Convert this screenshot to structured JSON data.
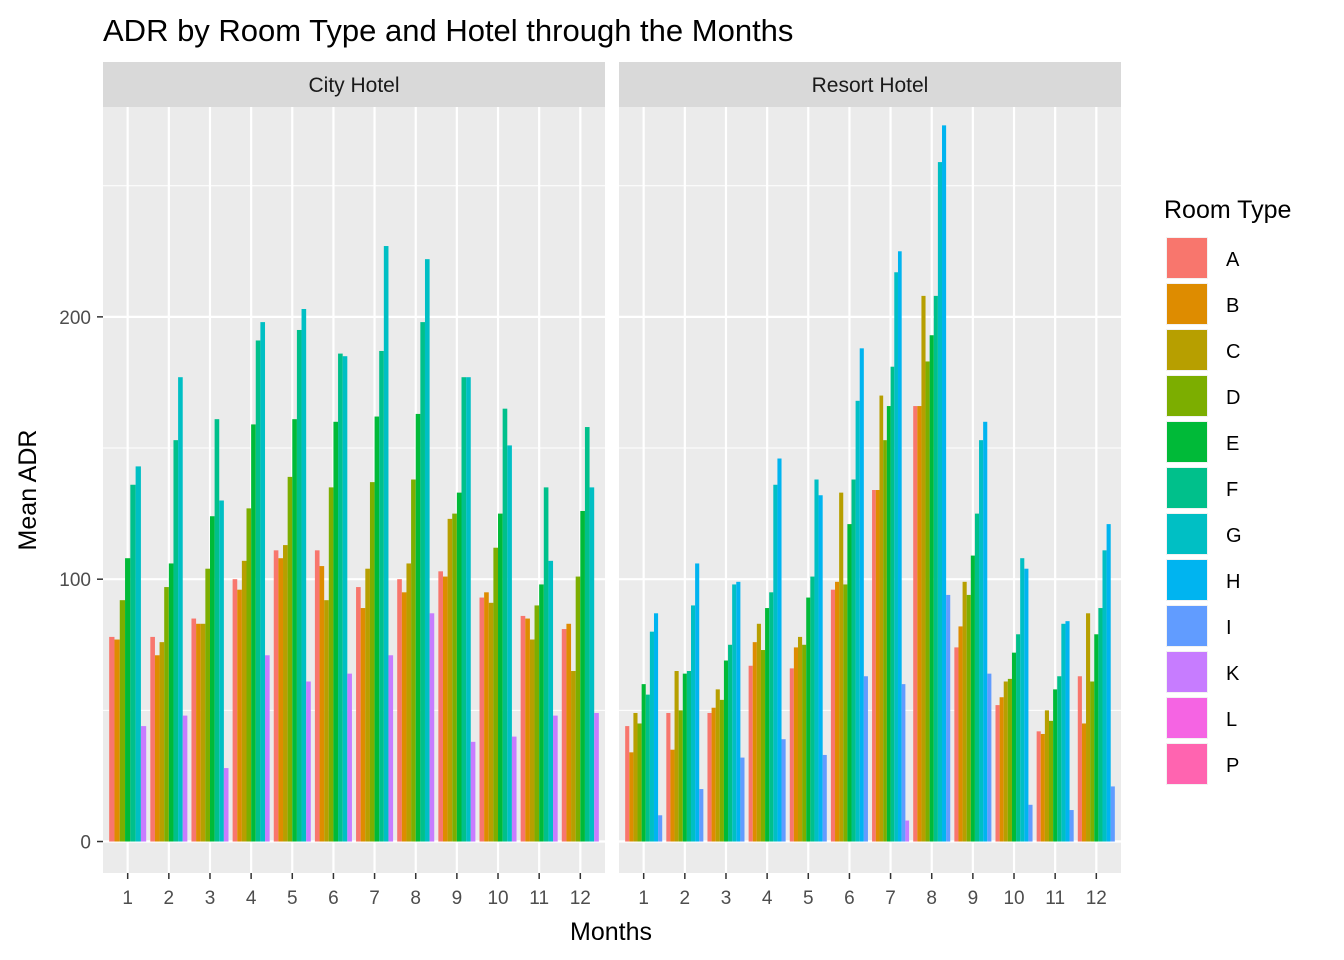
{
  "chart_data": {
    "type": "bar",
    "title": "ADR by Room Type and Hotel through the Months",
    "xlabel": "Months",
    "ylabel": "Mean ADR",
    "ylim": [
      -12,
      280
    ],
    "yticks": [
      0,
      100,
      200
    ],
    "grid": true,
    "legend": {
      "title": "Room Type",
      "placement": "right",
      "entries": [
        "A",
        "B",
        "C",
        "D",
        "E",
        "F",
        "G",
        "H",
        "I",
        "K",
        "L",
        "P"
      ]
    },
    "colors": {
      "A": "#F8766D",
      "B": "#DE8C00",
      "C": "#B79F00",
      "D": "#7CAE00",
      "E": "#00BA38",
      "F": "#00C08B",
      "G": "#00BFC4",
      "H": "#00B4F0",
      "I": "#619CFF",
      "K": "#C77CFF",
      "L": "#F564E3",
      "P": "#FF64B0"
    },
    "categories": [
      "1",
      "2",
      "3",
      "4",
      "5",
      "6",
      "7",
      "8",
      "9",
      "10",
      "11",
      "12"
    ],
    "panels": [
      {
        "name": "City Hotel",
        "groups": [
          {
            "A": 78,
            "B": 77,
            "D": 92,
            "E": 108,
            "F": 136,
            "G": 143,
            "K": 44
          },
          {
            "A": 78,
            "B": 71,
            "C": 76,
            "D": 97,
            "E": 106,
            "F": 153,
            "G": 177,
            "K": 48
          },
          {
            "A": 85,
            "B": 83,
            "C": 83,
            "D": 104,
            "E": 124,
            "F": 161,
            "G": 130,
            "K": 28
          },
          {
            "A": 100,
            "B": 96,
            "C": 107,
            "D": 127,
            "E": 159,
            "F": 191,
            "G": 198,
            "K": 71
          },
          {
            "A": 111,
            "B": 108,
            "C": 113,
            "D": 139,
            "E": 161,
            "F": 195,
            "G": 203,
            "K": 61
          },
          {
            "A": 111,
            "B": 105,
            "C": 92,
            "D": 135,
            "E": 160,
            "F": 186,
            "G": 185,
            "K": 64
          },
          {
            "A": 97,
            "B": 89,
            "C": 104,
            "D": 137,
            "E": 162,
            "F": 187,
            "G": 227,
            "K": 71
          },
          {
            "A": 100,
            "B": 95,
            "C": 106,
            "D": 138,
            "E": 163,
            "F": 198,
            "G": 222,
            "K": 87
          },
          {
            "A": 103,
            "B": 101,
            "C": 123,
            "D": 125,
            "E": 133,
            "F": 177,
            "G": 177,
            "K": 38
          },
          {
            "A": 93,
            "B": 95,
            "C": 91,
            "D": 112,
            "E": 125,
            "F": 165,
            "G": 151,
            "K": 40
          },
          {
            "A": 86,
            "B": 85,
            "C": 77,
            "D": 90,
            "E": 98,
            "F": 135,
            "G": 107,
            "K": 48
          },
          {
            "A": 81,
            "B": 83,
            "C": 65,
            "D": 101,
            "E": 126,
            "F": 158,
            "G": 135,
            "K": 49
          }
        ]
      },
      {
        "name": "Resort Hotel",
        "groups": [
          {
            "A": 44,
            "B": 34,
            "C": 49,
            "D": 45,
            "E": 60,
            "F": 56,
            "G": 80,
            "H": 87,
            "I": 10
          },
          {
            "A": 49,
            "B": 35,
            "C": 65,
            "D": 50,
            "E": 64,
            "F": 65,
            "G": 90,
            "H": 106,
            "I": 20
          },
          {
            "A": 49,
            "B": 51,
            "C": 58,
            "D": 54,
            "E": 69,
            "F": 75,
            "G": 98,
            "H": 99,
            "I": 32
          },
          {
            "A": 67,
            "B": 76,
            "C": 83,
            "D": 73,
            "E": 89,
            "F": 95,
            "G": 136,
            "H": 146,
            "I": 39
          },
          {
            "A": 66,
            "B": 74,
            "C": 78,
            "D": 75,
            "E": 93,
            "F": 101,
            "G": 138,
            "H": 132,
            "I": 33
          },
          {
            "A": 96,
            "B": 99,
            "C": 133,
            "D": 98,
            "E": 121,
            "F": 138,
            "G": 168,
            "H": 188,
            "I": 63
          },
          {
            "A": 134,
            "B": 134,
            "C": 170,
            "D": 153,
            "E": 166,
            "F": 181,
            "G": 217,
            "H": 225,
            "I": 60,
            "K": 8
          },
          {
            "A": 166,
            "B": 166,
            "C": 208,
            "D": 183,
            "E": 193,
            "F": 208,
            "G": 259,
            "H": 273,
            "I": 94
          },
          {
            "A": 74,
            "B": 82,
            "C": 99,
            "D": 94,
            "E": 109,
            "F": 125,
            "G": 153,
            "H": 160,
            "I": 64
          },
          {
            "A": 52,
            "B": 55,
            "C": 61,
            "D": 62,
            "E": 72,
            "F": 79,
            "G": 108,
            "H": 104,
            "I": 14
          },
          {
            "A": 42,
            "B": 41,
            "C": 50,
            "D": 46,
            "E": 58,
            "F": 63,
            "G": 83,
            "H": 84,
            "I": 12
          },
          {
            "A": 63,
            "B": 45,
            "C": 87,
            "D": 61,
            "E": 79,
            "F": 89,
            "G": 111,
            "H": 121,
            "I": 21
          }
        ]
      }
    ]
  }
}
